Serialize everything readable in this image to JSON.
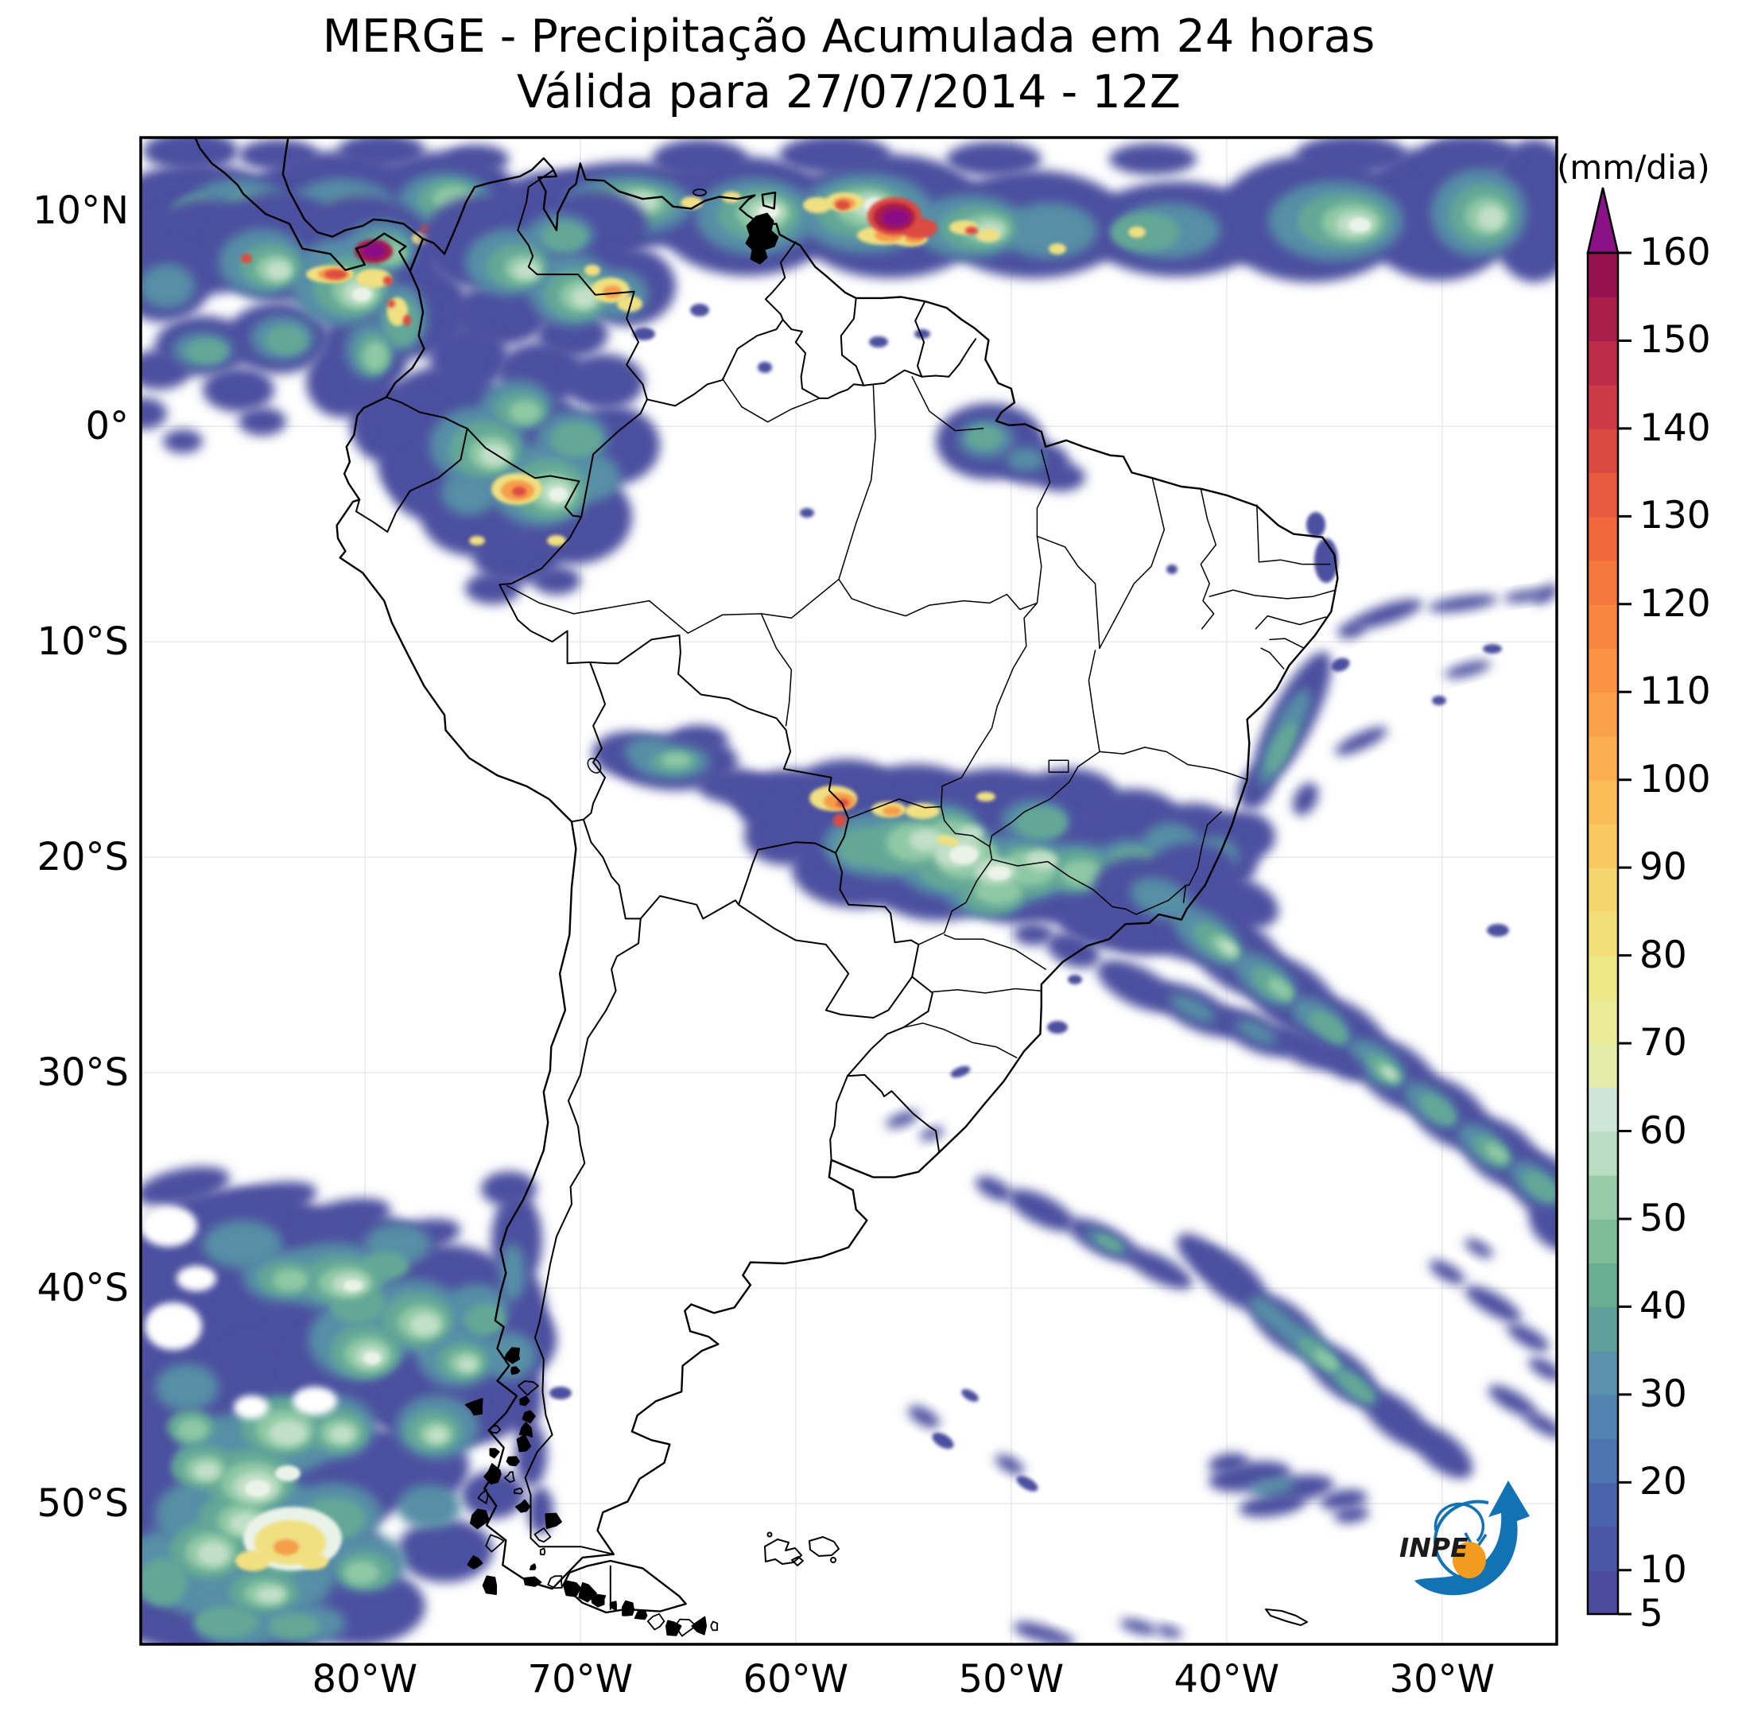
{
  "title": {
    "line1": "MERGE - Precipitação Acumulada em 24 horas",
    "line2": "Válida para 27/07/2014 - 12Z"
  },
  "axes": {
    "lat_ticks": [
      {
        "label": "10°N",
        "deg": 10
      },
      {
        "label": "0°",
        "deg": 0
      },
      {
        "label": "10°S",
        "deg": -10
      },
      {
        "label": "20°S",
        "deg": -20
      },
      {
        "label": "30°S",
        "deg": -30
      },
      {
        "label": "40°S",
        "deg": -40
      },
      {
        "label": "50°S",
        "deg": -50
      }
    ],
    "lon_ticks": [
      {
        "label": "80°W",
        "deg": -80
      },
      {
        "label": "70°W",
        "deg": -70
      },
      {
        "label": "60°W",
        "deg": -60
      },
      {
        "label": "50°W",
        "deg": -50
      },
      {
        "label": "40°W",
        "deg": -40
      },
      {
        "label": "30°W",
        "deg": -30
      }
    ]
  },
  "colorbar": {
    "unit_label": "(mm/dia)",
    "min": 5,
    "max": 160,
    "tick_values": [
      160,
      150,
      140,
      130,
      120,
      110,
      100,
      90,
      80,
      70,
      60,
      50,
      40,
      30,
      20,
      10,
      5
    ],
    "over_arrow_color": "#8a1186",
    "segments": [
      {
        "from": 5,
        "to": 10,
        "color": "#4c4b9e"
      },
      {
        "from": 10,
        "to": 15,
        "color": "#4a57a6"
      },
      {
        "from": 15,
        "to": 20,
        "color": "#4a64ab"
      },
      {
        "from": 20,
        "to": 25,
        "color": "#4e74af"
      },
      {
        "from": 25,
        "to": 30,
        "color": "#5383b0"
      },
      {
        "from": 30,
        "to": 35,
        "color": "#5992aa"
      },
      {
        "from": 35,
        "to": 40,
        "color": "#60a09c"
      },
      {
        "from": 40,
        "to": 45,
        "color": "#69ad92"
      },
      {
        "from": 45,
        "to": 50,
        "color": "#7fbd99"
      },
      {
        "from": 50,
        "to": 55,
        "color": "#97cba8"
      },
      {
        "from": 55,
        "to": 60,
        "color": "#b9dcc2"
      },
      {
        "from": 60,
        "to": 65,
        "color": "#cfe5d8"
      },
      {
        "from": 65,
        "to": 70,
        "color": "#e3eda8"
      },
      {
        "from": 70,
        "to": 75,
        "color": "#e9ec95"
      },
      {
        "from": 75,
        "to": 80,
        "color": "#eee786"
      },
      {
        "from": 80,
        "to": 85,
        "color": "#f2df79"
      },
      {
        "from": 85,
        "to": 90,
        "color": "#f5d56d"
      },
      {
        "from": 90,
        "to": 95,
        "color": "#f8c961"
      },
      {
        "from": 95,
        "to": 100,
        "color": "#fabc57"
      },
      {
        "from": 100,
        "to": 105,
        "color": "#fbae4f"
      },
      {
        "from": 105,
        "to": 110,
        "color": "#fba149"
      },
      {
        "from": 110,
        "to": 115,
        "color": "#fa9344"
      },
      {
        "from": 115,
        "to": 120,
        "color": "#f88540"
      },
      {
        "from": 120,
        "to": 125,
        "color": "#f5783d"
      },
      {
        "from": 125,
        "to": 130,
        "color": "#f0693c"
      },
      {
        "from": 130,
        "to": 135,
        "color": "#e75a3e"
      },
      {
        "from": 135,
        "to": 140,
        "color": "#db4a41"
      },
      {
        "from": 140,
        "to": 145,
        "color": "#cc3a45"
      },
      {
        "from": 145,
        "to": 150,
        "color": "#bc2c48"
      },
      {
        "from": 150,
        "to": 155,
        "color": "#a91e4b"
      },
      {
        "from": 155,
        "to": 160,
        "color": "#96124e"
      }
    ]
  },
  "logo": {
    "text": "INPE",
    "arrow_color": "#1272b4",
    "dot_color": "#f29c1f"
  }
}
